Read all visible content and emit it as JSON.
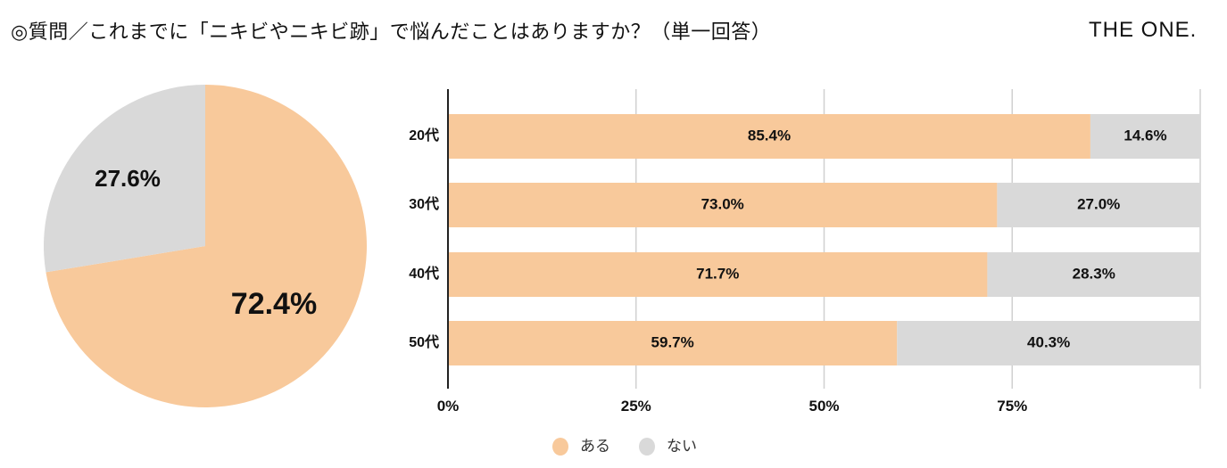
{
  "header": {
    "title": "◎質問／これまでに「ニキビやニキビ跡」で悩んだことはありますか？（単一回答）",
    "brand": "THE ONE."
  },
  "colors": {
    "yes": "#f8c99b",
    "no": "#d9d9d9",
    "grid": "#d0d0d0",
    "axis": "#222222"
  },
  "chart_data": [
    {
      "type": "pie",
      "title": "",
      "slices": [
        {
          "name": "ある",
          "value": 72.4,
          "label": "72.4%"
        },
        {
          "name": "ない",
          "value": 27.6,
          "label": "27.6%"
        }
      ]
    },
    {
      "type": "bar",
      "stacked": true,
      "orientation": "horizontal",
      "categories": [
        "20代",
        "30代",
        "40代",
        "50代"
      ],
      "series": [
        {
          "name": "ある",
          "values": [
            85.4,
            73.0,
            71.7,
            59.7
          ],
          "labels": [
            "85.4%",
            "73.0%",
            "71.7%",
            "59.7%"
          ]
        },
        {
          "name": "ない",
          "values": [
            14.6,
            27.0,
            28.3,
            40.3
          ],
          "labels": [
            "14.6%",
            "27.0%",
            "28.3%",
            "40.3%"
          ]
        }
      ],
      "xlim": [
        0,
        100
      ],
      "xticks": [
        0,
        25,
        50,
        75,
        100
      ],
      "xtick_labels": [
        "0%",
        "25%",
        "50%",
        "75%",
        ""
      ],
      "grid": true,
      "legend": {
        "position": "bottom",
        "entries": [
          "ある",
          "ない"
        ]
      }
    }
  ]
}
